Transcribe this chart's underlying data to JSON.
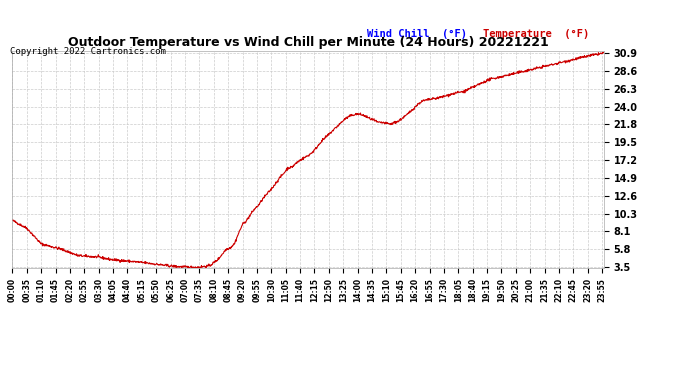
{
  "title": "Outdoor Temperature vs Wind Chill per Minute (24 Hours) 20221221",
  "copyright": "Copyright 2022 Cartronics.com",
  "legend_wind_chill": "Wind Chill  (°F)",
  "legend_temperature": "Temperature  (°F)",
  "yticks": [
    3.5,
    5.8,
    8.1,
    10.3,
    12.6,
    14.9,
    17.2,
    19.5,
    21.8,
    24.0,
    26.3,
    28.6,
    30.9
  ],
  "ymin": 3.5,
  "ymax": 30.9,
  "line_color": "#cc0000",
  "background_color": "#ffffff",
  "grid_color": "#cccccc",
  "title_color": "#000000",
  "copyright_color": "#000000",
  "wind_chill_legend_color": "#0000ff",
  "temp_legend_color": "#cc0000",
  "xtick_step": 35,
  "n_minutes": 1440
}
